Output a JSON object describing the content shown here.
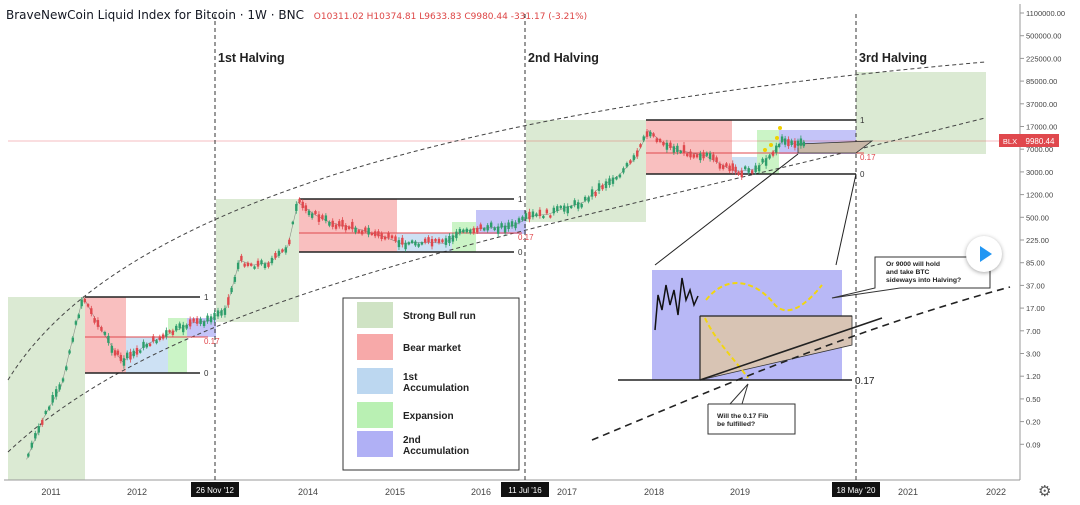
{
  "header": {
    "title": "BraveNewCoin Liquid Index for Bitcoin · 1W · BNC",
    "ohlc": "O10311.02 H10374.81 L9633.83 C9980.44 -331.17 (-3.21%)"
  },
  "halvings": [
    {
      "label": "1st Halving",
      "date_label": "26 Nov '12"
    },
    {
      "label": "2nd Halving",
      "date_label": "11 Jul '16"
    },
    {
      "label": "3rd Halving",
      "date_label": "18 May '20"
    }
  ],
  "price_tag": {
    "symbol": "BLX",
    "value": "9980.44"
  },
  "fib_labels": {
    "top": "1",
    "level": "0.17",
    "bottom": "0"
  },
  "legend": [
    {
      "label": "Strong Bull run",
      "color": "#cfe3c4"
    },
    {
      "label": "Bear market",
      "color": "#f7a9a9"
    },
    {
      "label": "1st Accumulation",
      "color": "#bcd7f0"
    },
    {
      "label": "Expansion",
      "color": "#b9f0b3"
    },
    {
      "label": "2nd Accumulation",
      "color": "#b0b0f5"
    }
  ],
  "annotations": {
    "hold": "Or 9000 will hold and take BTC sideways into Halving?",
    "fib": "Will the 0.17 Fib be fulfilled?",
    "inset_level": "0.17"
  },
  "colors": {
    "bull": "#2e9e6b",
    "bear": "#e0484d",
    "accent": "#e0484d"
  },
  "chart_data": {
    "type": "line",
    "title": "BraveNewCoin Liquid Index for Bitcoin",
    "y_scale": "log",
    "y_ticks": [
      "1100000.00",
      "500000.00",
      "225000.00",
      "85000.00",
      "37000.00",
      "17000.00",
      "7000.00",
      "3000.00",
      "1200.00",
      "500.00",
      "225.00",
      "85.00",
      "37.00",
      "17.00",
      "7.00",
      "3.00",
      "1.20",
      "0.50",
      "0.20",
      "0.09"
    ],
    "x_ticks": [
      "2011",
      "2012",
      "2014",
      "2015",
      "2016",
      "2017",
      "2018",
      "2019",
      "2021",
      "2022"
    ],
    "series": [
      {
        "x": [
          2010.8,
          2011.0,
          2011.2,
          2011.35,
          2011.45,
          2011.6,
          2011.8,
          2011.9,
          2012.2,
          2012.5,
          2012.7,
          2012.9,
          2013.1,
          2013.25,
          2013.4,
          2013.6,
          2013.8,
          2013.92,
          2014.1,
          2014.3,
          2014.6,
          2014.9,
          2015.1,
          2015.4,
          2015.6,
          2015.8,
          2016.0,
          2016.2,
          2016.4,
          2016.6,
          2016.8,
          2017.0,
          2017.2,
          2017.4,
          2017.6,
          2017.8,
          2017.95,
          2018.1,
          2018.3,
          2018.6,
          2018.9,
          2019.0,
          2019.2,
          2019.4,
          2019.5,
          2019.65,
          2019.75
        ],
        "y": [
          0.06,
          0.3,
          1.0,
          8.0,
          30.0,
          12.0,
          4.0,
          2.5,
          5.0,
          8.0,
          11.0,
          12.0,
          20.0,
          120.0,
          100.0,
          110.0,
          200.0,
          1100.0,
          700.0,
          500.0,
          400.0,
          300.0,
          230.0,
          240.0,
          230.0,
          360.0,
          410.0,
          420.0,
          450.0,
          650.0,
          700.0,
          900.0,
          1100.0,
          2000.0,
          3000.0,
          6000.0,
          17000.0,
          11000.0,
          8000.0,
          6500.0,
          3800.0,
          3600.0,
          4000.0,
          8000.0,
          12000.0,
          10000.0,
          9980.0
        ]
      }
    ]
  }
}
